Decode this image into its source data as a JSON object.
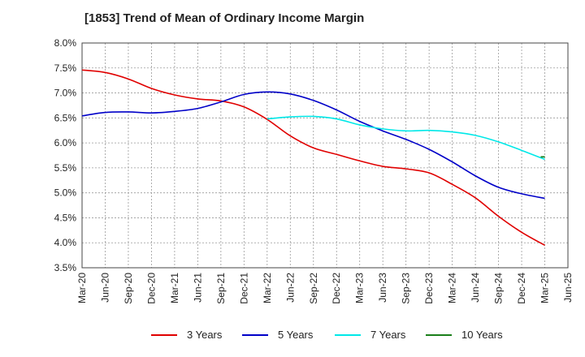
{
  "chart_data": {
    "type": "line",
    "title": "[1853]  Trend of Mean of Ordinary Income Margin",
    "xlabel": "",
    "ylabel": "",
    "ylim": [
      3.5,
      8.0
    ],
    "y_ticks": [
      "3.5%",
      "4.0%",
      "4.5%",
      "5.0%",
      "5.5%",
      "6.0%",
      "6.5%",
      "7.0%",
      "7.5%",
      "8.0%"
    ],
    "categories": [
      "Mar-20",
      "Jun-20",
      "Sep-20",
      "Dec-20",
      "Mar-21",
      "Jun-21",
      "Sep-21",
      "Dec-21",
      "Mar-22",
      "Jun-22",
      "Sep-22",
      "Dec-22",
      "Mar-23",
      "Jun-23",
      "Sep-23",
      "Dec-23",
      "Mar-24",
      "Jun-24",
      "Sep-24",
      "Dec-24",
      "Mar-25",
      "Jun-25"
    ],
    "grid": true,
    "legend_position": "bottom",
    "series": [
      {
        "name": "3 Years",
        "color": "#e00000",
        "values": [
          7.46,
          7.41,
          7.28,
          7.09,
          6.96,
          6.88,
          6.84,
          6.72,
          6.47,
          6.14,
          5.9,
          5.77,
          5.64,
          5.53,
          5.48,
          5.4,
          5.17,
          4.9,
          4.53,
          4.21,
          3.95,
          null
        ]
      },
      {
        "name": "5 Years",
        "color": "#0000c8",
        "values": [
          6.54,
          6.61,
          6.62,
          6.6,
          6.63,
          6.69,
          6.82,
          6.97,
          7.02,
          6.98,
          6.85,
          6.66,
          6.43,
          6.24,
          6.07,
          5.87,
          5.62,
          5.34,
          5.11,
          4.98,
          4.89,
          null
        ]
      },
      {
        "name": "7 Years",
        "color": "#00e8e8",
        "values": [
          null,
          null,
          null,
          null,
          null,
          null,
          null,
          null,
          6.48,
          6.52,
          6.53,
          6.48,
          6.36,
          6.28,
          6.24,
          6.25,
          6.22,
          6.15,
          6.02,
          5.85,
          5.67,
          null
        ]
      },
      {
        "name": "10 Years",
        "color": "#1a7f1a",
        "values": [
          null,
          null,
          null,
          null,
          null,
          null,
          null,
          null,
          null,
          null,
          null,
          null,
          null,
          null,
          null,
          null,
          null,
          null,
          null,
          null,
          5.72,
          null
        ]
      }
    ]
  }
}
